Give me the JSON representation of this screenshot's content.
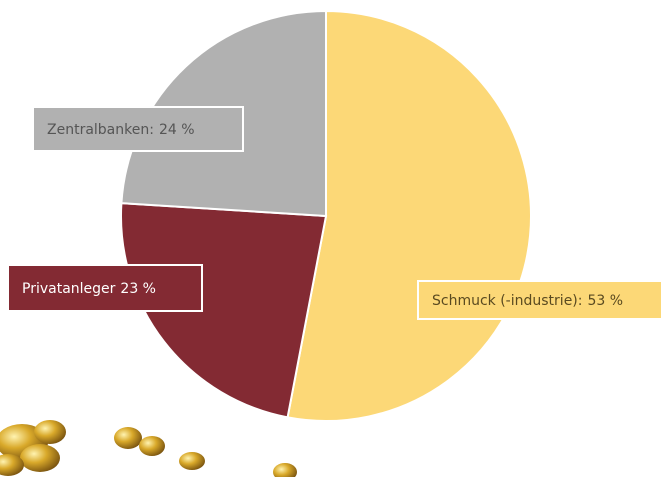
{
  "chart_data": {
    "type": "pie",
    "categories": [
      "Schmuck (-industrie):",
      "Privatanleger",
      "Zentralbanken:"
    ],
    "values": [
      53,
      23,
      24
    ],
    "value_labels": [
      "53 %",
      "23 %",
      "24 %"
    ],
    "colors": [
      "#fcd877",
      "#832a33",
      "#b1b1b1"
    ]
  }
}
